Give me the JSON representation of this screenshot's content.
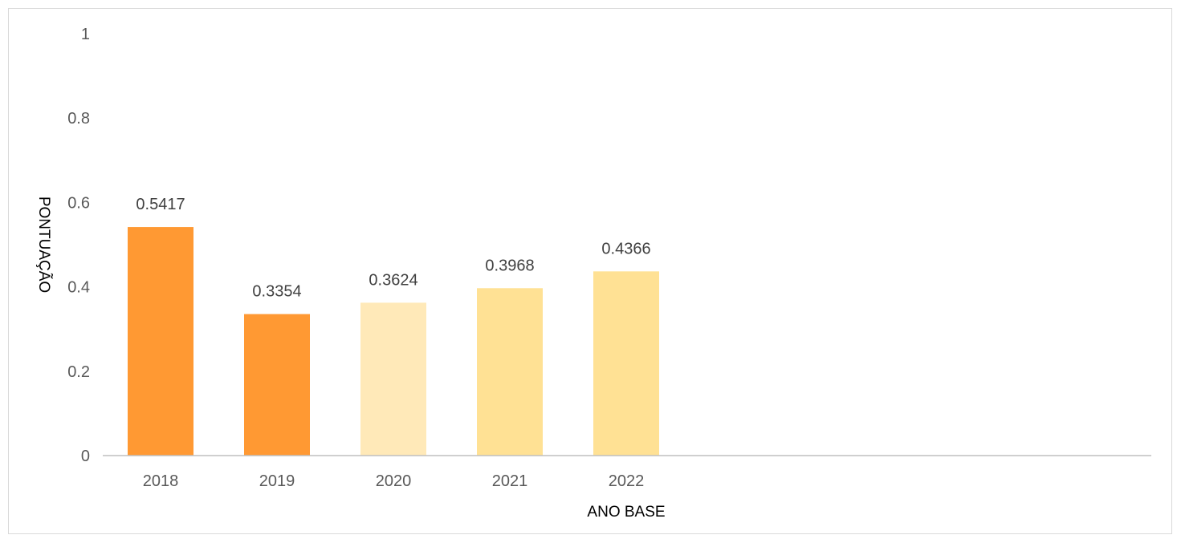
{
  "chart_data": {
    "type": "bar",
    "title": "",
    "xlabel": "ANO BASE",
    "ylabel": "PONTUAÇÃO",
    "categories": [
      "2018",
      "2019",
      "2020",
      "2021",
      "2022"
    ],
    "values": [
      0.5417,
      0.3354,
      0.3624,
      0.3968,
      0.4366
    ],
    "value_labels": [
      "0.5417",
      "0.3354",
      "0.3624",
      "0.3968",
      "0.4366"
    ],
    "bar_colors": [
      "#FF9933",
      "#FF9933",
      "#FFE9B8",
      "#FFE194",
      "#FFE194"
    ],
    "ylim": [
      0,
      1
    ],
    "yticks": [
      0,
      0.2,
      0.4,
      0.6,
      0.8,
      1
    ],
    "ytick_labels": [
      "0",
      "0.2",
      "0.4",
      "0.6",
      "0.8",
      "1"
    ],
    "grid": false,
    "legend": "none"
  }
}
